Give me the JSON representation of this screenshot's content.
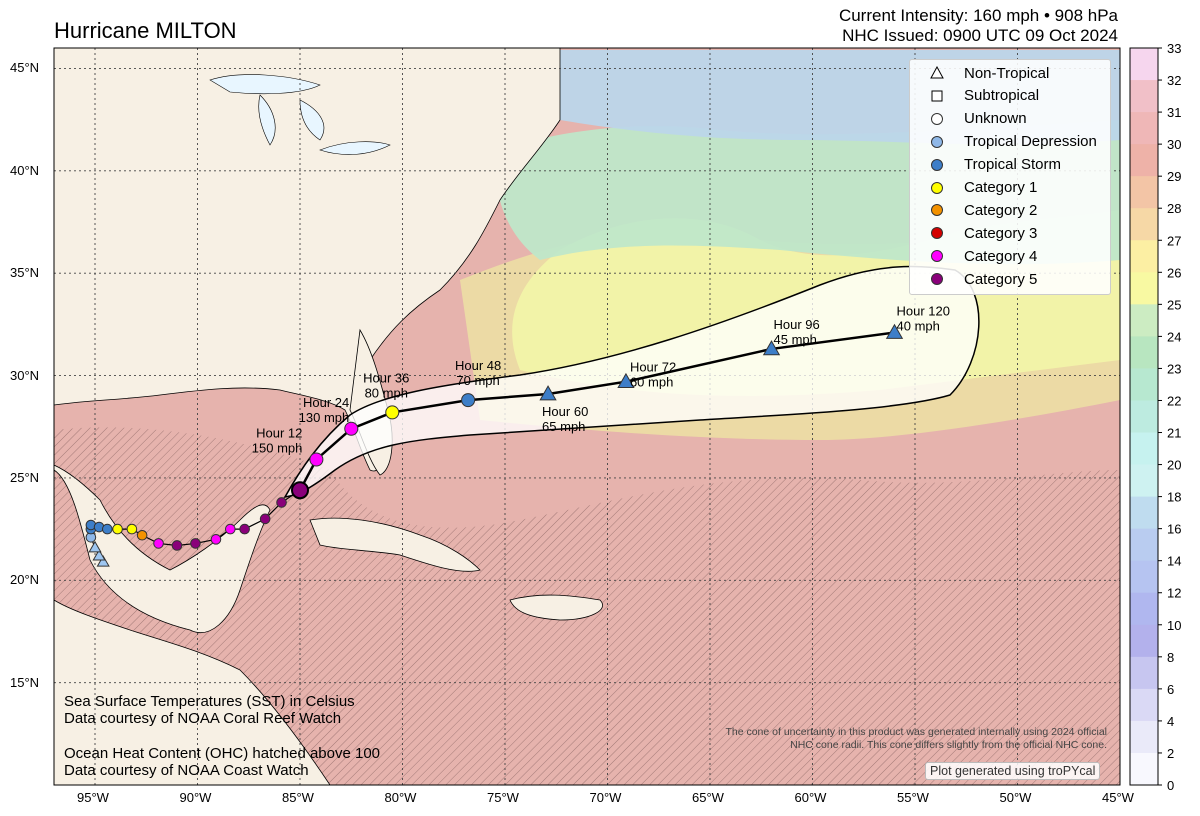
{
  "header": {
    "title": "Hurricane MILTON",
    "intensity_line": "Current Intensity: 160 mph • 908 hPa",
    "issued_line": "NHC Issued: 0900 UTC 09 Oct 2024"
  },
  "legend": [
    {
      "label": "Non-Tropical",
      "symbol": "triangle",
      "color": "#ffffff"
    },
    {
      "label": "Subtropical",
      "symbol": "square",
      "color": "#ffffff"
    },
    {
      "label": "Unknown",
      "symbol": "circle",
      "color": "#ffffff"
    },
    {
      "label": "Tropical Depression",
      "symbol": "circle",
      "color": "#8fb8e8"
    },
    {
      "label": "Tropical Storm",
      "symbol": "circle",
      "color": "#3d7ec8"
    },
    {
      "label": "Category 1",
      "symbol": "circle",
      "color": "#ffff00"
    },
    {
      "label": "Category 2",
      "symbol": "circle",
      "color": "#f39200"
    },
    {
      "label": "Category 3",
      "symbol": "circle",
      "color": "#d40000"
    },
    {
      "label": "Category 4",
      "symbol": "circle",
      "color": "#ff00ff"
    },
    {
      "label": "Category 5",
      "symbol": "circle",
      "color": "#8a007a"
    }
  ],
  "forecast_points": [
    {
      "hour": "Hour 12",
      "wind": "150 mph",
      "lon": -84.2,
      "lat": 25.9,
      "category": "Category 4"
    },
    {
      "hour": "Hour 24",
      "wind": "130 mph",
      "lon": -82.5,
      "lat": 27.4,
      "category": "Category 4"
    },
    {
      "hour": "Hour 36",
      "wind": "80 mph",
      "lon": -80.5,
      "lat": 28.2,
      "category": "Category 1"
    },
    {
      "hour": "Hour 48",
      "wind": "70 mph",
      "lon": -76.8,
      "lat": 28.8,
      "category": "Tropical Storm"
    },
    {
      "hour": "Hour 60",
      "wind": "65 mph",
      "lon": -72.9,
      "lat": 29.1,
      "category": "Non-Tropical"
    },
    {
      "hour": "Hour 72",
      "wind": "60 mph",
      "lon": -69.1,
      "lat": 29.7,
      "category": "Non-Tropical"
    },
    {
      "hour": "Hour 96",
      "wind": "45 mph",
      "lon": -62.0,
      "lat": 31.3,
      "category": "Non-Tropical"
    },
    {
      "hour": "Hour 120",
      "wind": "40 mph",
      "lon": -56.0,
      "lat": 32.1,
      "category": "Non-Tropical"
    }
  ],
  "current_position": {
    "lon": -85.0,
    "lat": 24.4,
    "category": "Category 5"
  },
  "past_track": [
    {
      "lon": -94.6,
      "lat": 20.9,
      "category": "Non-Tropical"
    },
    {
      "lon": -94.8,
      "lat": 21.2,
      "category": "Non-Tropical"
    },
    {
      "lon": -95.0,
      "lat": 21.6,
      "category": "Non-Tropical"
    },
    {
      "lon": -95.2,
      "lat": 22.1,
      "category": "Tropical Depression"
    },
    {
      "lon": -95.2,
      "lat": 22.5,
      "category": "Tropical Storm"
    },
    {
      "lon": -95.2,
      "lat": 22.7,
      "category": "Tropical Storm"
    },
    {
      "lon": -94.8,
      "lat": 22.6,
      "category": "Tropical Storm"
    },
    {
      "lon": -94.4,
      "lat": 22.5,
      "category": "Tropical Storm"
    },
    {
      "lon": -93.9,
      "lat": 22.5,
      "category": "Category 1"
    },
    {
      "lon": -93.2,
      "lat": 22.5,
      "category": "Category 1"
    },
    {
      "lon": -92.7,
      "lat": 22.2,
      "category": "Category 2"
    },
    {
      "lon": -91.9,
      "lat": 21.8,
      "category": "Category 4"
    },
    {
      "lon": -91.0,
      "lat": 21.7,
      "category": "Category 5"
    },
    {
      "lon": -90.1,
      "lat": 21.8,
      "category": "Category 5"
    },
    {
      "lon": -89.1,
      "lat": 22.0,
      "category": "Category 4"
    },
    {
      "lon": -88.4,
      "lat": 22.5,
      "category": "Category 4"
    },
    {
      "lon": -87.7,
      "lat": 22.5,
      "category": "Category 5"
    },
    {
      "lon": -86.7,
      "lat": 23.0,
      "category": "Category 5"
    },
    {
      "lon": -85.9,
      "lat": 23.8,
      "category": "Category 5"
    }
  ],
  "map_extent": {
    "lon_min": -97,
    "lon_max": -45,
    "lat_min": 10,
    "lat_max": 46
  },
  "lon_ticks": [
    {
      "value": -95,
      "label": "95°W"
    },
    {
      "value": -90,
      "label": "90°W"
    },
    {
      "value": -85,
      "label": "85°W"
    },
    {
      "value": -80,
      "label": "80°W"
    },
    {
      "value": -75,
      "label": "75°W"
    },
    {
      "value": -70,
      "label": "70°W"
    },
    {
      "value": -65,
      "label": "65°W"
    },
    {
      "value": -60,
      "label": "60°W"
    },
    {
      "value": -55,
      "label": "55°W"
    },
    {
      "value": -50,
      "label": "50°W"
    },
    {
      "value": -45,
      "label": "45°W"
    }
  ],
  "lat_ticks": [
    {
      "value": 45,
      "label": "45°N"
    },
    {
      "value": 40,
      "label": "40°N"
    },
    {
      "value": 35,
      "label": "35°N"
    },
    {
      "value": 30,
      "label": "30°N"
    },
    {
      "value": 25,
      "label": "25°N"
    },
    {
      "value": 20,
      "label": "20°N"
    },
    {
      "value": 15,
      "label": "15°N"
    }
  ],
  "colorbar": {
    "ticks": [
      "33",
      "32",
      "31",
      "30",
      "29",
      "28",
      "27",
      "26",
      "25",
      "24",
      "23",
      "22",
      "21",
      "20",
      "18",
      "16",
      "14",
      "12",
      "10",
      "8",
      "6",
      "4",
      "2",
      "0"
    ],
    "colors": [
      "#f6d6ee",
      "#f1c0c8",
      "#efb7b7",
      "#eeb2a8",
      "#f3c5a6",
      "#f6d8a6",
      "#fcefa3",
      "#f8f9a2",
      "#ccecc2",
      "#b8e6c0",
      "#b7e8d0",
      "#bdebe0",
      "#c6f2ef",
      "#cef2f1",
      "#bfdcef",
      "#b9ccf0",
      "#b6c4f1",
      "#b0b7ef",
      "#b3b1ec",
      "#c7c6f0",
      "#dad9f5",
      "#eaeaf9",
      "#f8f8fe"
    ]
  },
  "notes": {
    "sst_line1": "Sea Surface Temperatures (SST) in Celsius",
    "sst_line2": "Data courtesy of NOAA Coral Reef Watch",
    "ohc_line1": "Ocean Heat Content (OHC) hatched above 100",
    "ohc_line2": "Data courtesy of NOAA Coast Watch",
    "disclaimer_line1": "The cone of uncertainty in this product was generated internally using 2024 official",
    "disclaimer_line2": "NHC cone radii. This cone differs slightly from the official NHC cone.",
    "credit": "Plot generated using troPYcal"
  }
}
